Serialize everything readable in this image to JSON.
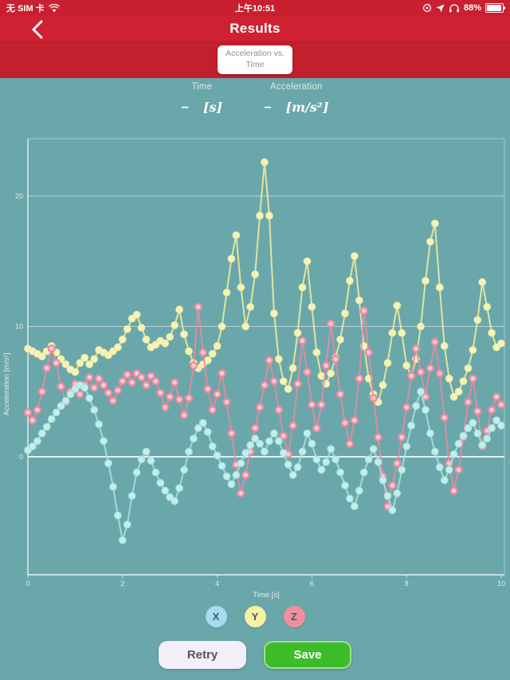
{
  "status_bar": {
    "carrier": "无 SIM 卡",
    "time": "上午10:51",
    "battery_percent": "88%",
    "left_icons": [
      "wifi-icon"
    ],
    "right_icons": [
      "rotation-lock-icon",
      "location-icon",
      "headphones-icon",
      "battery-icon"
    ]
  },
  "header": {
    "title": "Results",
    "tab_line1": "Acceleration vs.",
    "tab_line2": "Time"
  },
  "readout": {
    "time_label": "Time",
    "time_value": "–",
    "time_unit": "[s]",
    "accel_label": "Acceleration",
    "accel_value": "–",
    "accel_unit": "[m/s²]"
  },
  "chart_data": {
    "type": "scatter",
    "title": "Acceleration vs. Time",
    "xlabel": "Time [s]",
    "ylabel": "Acceleration [m/s²]",
    "xlim": [
      0,
      10
    ],
    "ylim": [
      -9,
      24.5
    ],
    "x_ticks": [
      0,
      2,
      4,
      6,
      8,
      10
    ],
    "y_ticks": [
      0,
      10,
      20
    ],
    "grid": true,
    "legend_position": "bottom",
    "t_start": 0,
    "t_step": 0.1,
    "series": [
      {
        "name": "X",
        "line": "#a6e2de",
        "fill": "#c3eeeb",
        "ring": false,
        "values": [
          0.5,
          0.8,
          1.2,
          1.8,
          2.3,
          2.9,
          3.4,
          3.9,
          4.3,
          4.8,
          5.2,
          5.5,
          5.3,
          4.5,
          3.6,
          2.5,
          1.2,
          -0.5,
          -2.3,
          -4.5,
          -6.4,
          -5.2,
          -3.0,
          -1.2,
          -0.2,
          0.4,
          -0.3,
          -1.2,
          -2.0,
          -2.6,
          -3.1,
          -3.4,
          -2.4,
          -1.0,
          0.4,
          1.4,
          2.2,
          2.6,
          1.9,
          0.8,
          0.1,
          -0.7,
          -1.5,
          -2.1,
          -1.4,
          -0.5,
          0.3,
          0.9,
          1.4,
          1.0,
          0.4,
          1.2,
          1.8,
          1.2,
          0.3,
          -0.6,
          -1.4,
          -0.8,
          0.4,
          1.8,
          1.0,
          -0.2,
          -1.0,
          -0.4,
          0.6,
          -0.2,
          -1.2,
          -2.2,
          -3.2,
          -3.8,
          -2.6,
          -1.2,
          -0.2,
          0.6,
          -0.4,
          -1.8,
          -3.0,
          -4.1,
          -2.8,
          -1.0,
          0.8,
          2.4,
          3.9,
          5.0,
          3.6,
          1.8,
          0.4,
          -0.8,
          -1.8,
          -1.0,
          0.2,
          1.0,
          1.6,
          2.2,
          2.6,
          1.8,
          0.9,
          1.4,
          2.2,
          2.8,
          2.4
        ]
      },
      {
        "name": "Y",
        "line": "#eeeb9e",
        "fill": "#f6f3b8",
        "ring": false,
        "values": [
          8.3,
          8.1,
          7.9,
          7.7,
          8.1,
          8.5,
          8.0,
          7.5,
          7.1,
          6.7,
          6.5,
          7.2,
          7.6,
          7.1,
          7.5,
          8.2,
          8.0,
          7.8,
          8.1,
          8.4,
          9.0,
          9.8,
          10.6,
          10.9,
          9.9,
          9.0,
          8.4,
          8.6,
          8.9,
          8.7,
          9.2,
          10.1,
          11.3,
          9.4,
          8.1,
          7.2,
          6.8,
          7.1,
          7.4,
          7.9,
          8.5,
          10.0,
          12.6,
          15.2,
          17.0,
          13.0,
          10.0,
          11.5,
          14.0,
          18.5,
          22.6,
          18.5,
          11.0,
          7.5,
          5.8,
          5.2,
          6.8,
          9.5,
          13.0,
          15.0,
          11.5,
          8.0,
          6.2,
          5.6,
          6.4,
          7.6,
          9.0,
          11.0,
          13.5,
          15.4,
          12.0,
          8.5,
          6.0,
          4.8,
          4.2,
          5.5,
          7.2,
          9.5,
          11.6,
          9.5,
          7.0,
          6.2,
          7.5,
          10.0,
          13.5,
          16.5,
          17.9,
          13.0,
          8.5,
          6.0,
          4.6,
          5.0,
          5.8,
          6.8,
          8.2,
          10.5,
          13.4,
          11.5,
          9.5,
          8.4,
          8.7
        ]
      },
      {
        "name": "Z",
        "line": "#e88ba0",
        "fill": "#f6ccd5",
        "ring": true,
        "values": [
          3.4,
          2.8,
          3.6,
          5.0,
          6.8,
          8.3,
          7.2,
          5.4,
          4.2,
          5.0,
          5.6,
          4.8,
          5.5,
          6.1,
          5.3,
          6.0,
          5.5,
          4.9,
          4.3,
          5.1,
          5.8,
          6.3,
          5.7,
          6.4,
          6.1,
          5.5,
          6.2,
          5.8,
          4.9,
          3.8,
          4.6,
          5.7,
          4.4,
          3.2,
          4.5,
          7.0,
          11.5,
          8.0,
          5.2,
          3.6,
          4.8,
          6.4,
          4.2,
          1.8,
          -0.6,
          -2.8,
          -1.4,
          0.4,
          2.2,
          3.8,
          5.5,
          7.4,
          5.8,
          3.6,
          1.6,
          0.2,
          2.4,
          5.6,
          8.9,
          6.5,
          4.0,
          2.2,
          4.0,
          7.0,
          10.2,
          7.5,
          4.8,
          2.6,
          1.0,
          2.8,
          6.0,
          11.2,
          8.0,
          4.5,
          1.5,
          -1.5,
          -3.8,
          -2.2,
          -0.5,
          1.5,
          3.8,
          6.2,
          8.3,
          6.5,
          4.6,
          6.8,
          8.8,
          6.4,
          3.0,
          -0.5,
          -2.6,
          -1.0,
          1.5,
          4.2,
          6.0,
          3.5,
          0.8,
          2.0,
          3.6,
          4.6,
          4.0
        ]
      }
    ]
  },
  "legend": [
    {
      "label": "X",
      "color": "#a6dcf0"
    },
    {
      "label": "Y",
      "color": "#f5f2a5"
    },
    {
      "label": "Z",
      "color": "#f28ea0"
    }
  ],
  "buttons": {
    "retry": "Retry",
    "save": "Save"
  },
  "colors": {
    "header_red": "#ce2232",
    "background_teal": "#6aa7ab",
    "save_green": "#3dbc2a",
    "save_border": "#9fe289",
    "retry_bg": "#f3eff7",
    "series_x": "#c3eeeb",
    "series_y": "#f6f3b8",
    "series_z": "#ee9bb0"
  }
}
